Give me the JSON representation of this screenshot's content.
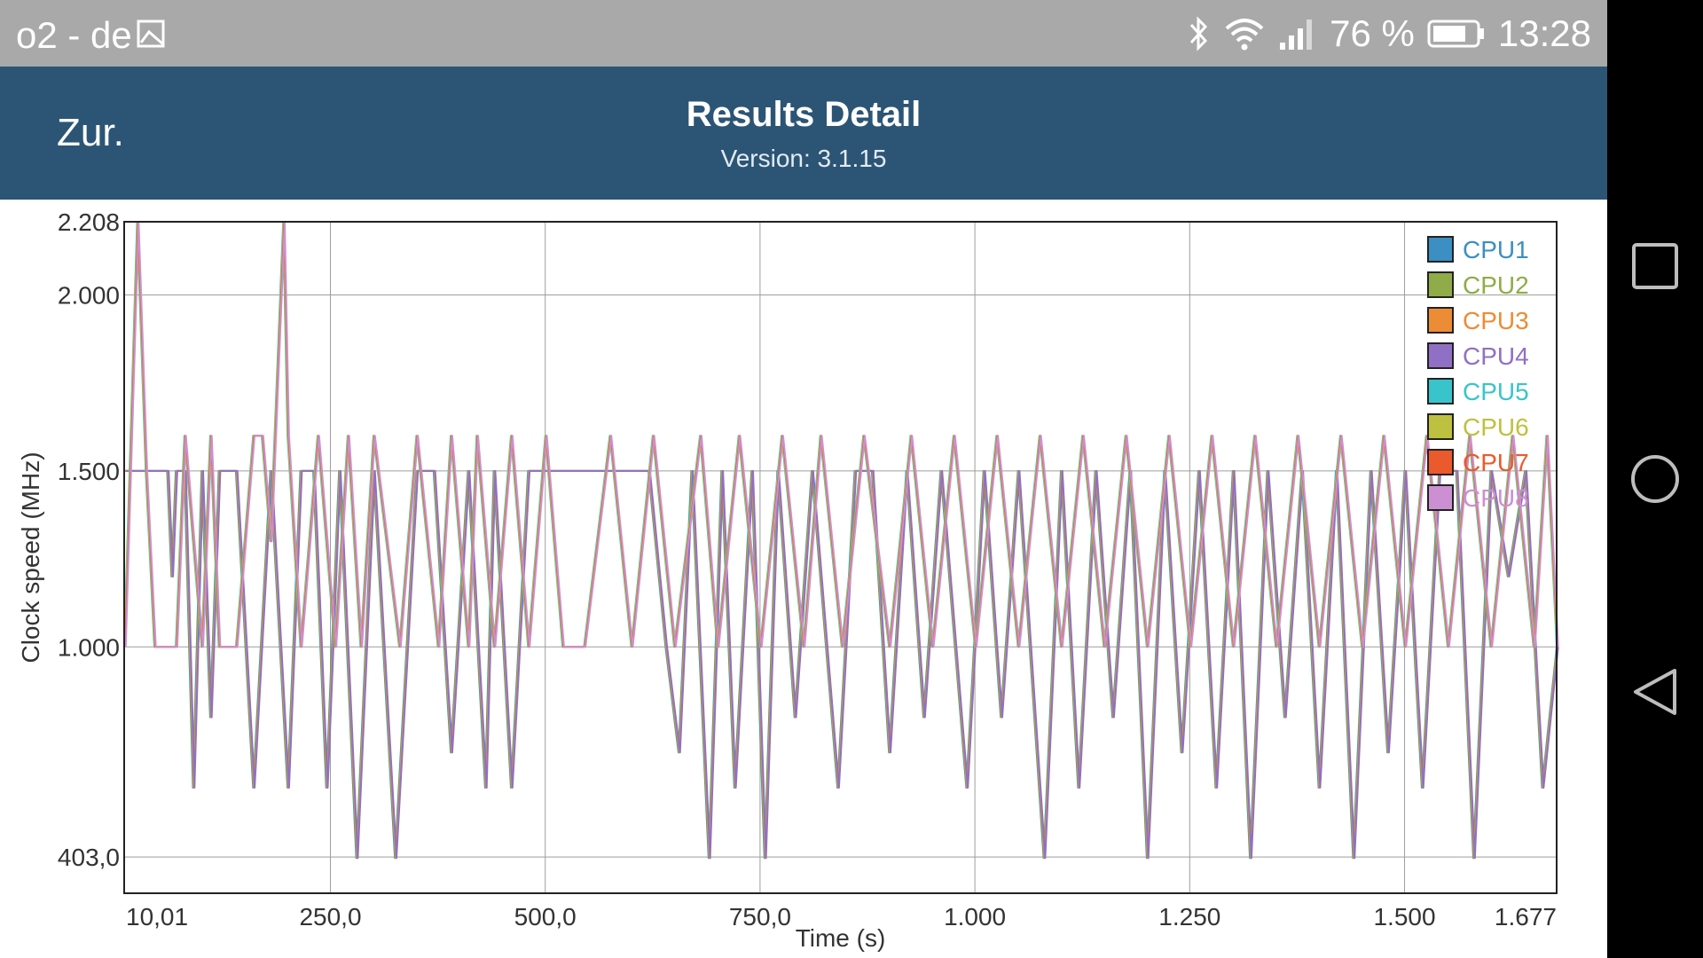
{
  "status_bar": {
    "carrier": "o2 - de",
    "battery": "76 %",
    "time": "13:28",
    "icons": [
      "image-icon",
      "bluetooth-icon",
      "wifi-icon",
      "signal-icon",
      "battery-icon"
    ]
  },
  "app_bar": {
    "back_label": "Zur.",
    "title": "Results Detail",
    "version": "Version: 3.1.15",
    "background": "#2c5575"
  },
  "nav_bar": {
    "buttons": [
      "recent-apps-icon",
      "home-icon",
      "back-icon"
    ]
  },
  "chart_data": {
    "type": "line",
    "xlabel": "Time (s)",
    "ylabel": "Clock speed (MHz)",
    "xlim": [
      10.01,
      1677
    ],
    "ylim": [
      300,
      2208
    ],
    "x_ticks": [
      {
        "value": 10.01,
        "label": "10,01"
      },
      {
        "value": 250,
        "label": "250,0"
      },
      {
        "value": 500,
        "label": "500,0"
      },
      {
        "value": 750,
        "label": "750,0"
      },
      {
        "value": 1000,
        "label": "1.000"
      },
      {
        "value": 1250,
        "label": "1.250"
      },
      {
        "value": 1500,
        "label": "1.500"
      },
      {
        "value": 1677,
        "label": "1.677"
      }
    ],
    "y_ticks": [
      {
        "value": 403,
        "label": "403,0"
      },
      {
        "value": 1000,
        "label": "1.000"
      },
      {
        "value": 1500,
        "label": "1.500"
      },
      {
        "value": 2000,
        "label": "2.000"
      },
      {
        "value": 2208,
        "label": "2.208"
      }
    ],
    "grid": true,
    "legend_position": "top-right",
    "series": [
      {
        "name": "CPU1",
        "color": "#3b8fc2",
        "values_ref": "cluster_a"
      },
      {
        "name": "CPU2",
        "color": "#8fac48",
        "values_ref": "cluster_a"
      },
      {
        "name": "CPU3",
        "color": "#ec8c35",
        "values_ref": "cluster_a"
      },
      {
        "name": "CPU4",
        "color": "#9070c4",
        "values_ref": "cluster_a"
      },
      {
        "name": "CPU5",
        "color": "#39c4cc",
        "values_ref": "cluster_b"
      },
      {
        "name": "CPU6",
        "color": "#bec13f",
        "values_ref": "cluster_b"
      },
      {
        "name": "CPU7",
        "color": "#ea5a2c",
        "values_ref": "cluster_b"
      },
      {
        "name": "CPU8",
        "color": "#cc8fd2",
        "values_ref": "cluster_b"
      }
    ],
    "cluster_a": {
      "x": [
        10.01,
        50,
        60,
        65,
        70,
        80,
        90,
        100,
        110,
        120,
        140,
        160,
        180,
        200,
        215,
        230,
        245,
        260,
        280,
        300,
        325,
        350,
        370,
        390,
        410,
        430,
        440,
        460,
        480,
        500,
        540,
        580,
        600,
        620,
        640,
        655,
        670,
        690,
        705,
        720,
        740,
        755,
        770,
        790,
        810,
        840,
        860,
        880,
        900,
        920,
        940,
        960,
        990,
        1010,
        1030,
        1050,
        1080,
        1100,
        1120,
        1140,
        1160,
        1180,
        1200,
        1220,
        1240,
        1260,
        1280,
        1300,
        1320,
        1340,
        1360,
        1380,
        1400,
        1420,
        1440,
        1460,
        1480,
        1500,
        1520,
        1540,
        1560,
        1580,
        1600,
        1620,
        1640,
        1660,
        1677
      ],
      "y": [
        1500,
        1500,
        1500,
        1200,
        1500,
        1500,
        600,
        1500,
        800,
        1500,
        1500,
        600,
        1500,
        600,
        1500,
        1500,
        600,
        1500,
        400,
        1500,
        400,
        1500,
        1500,
        700,
        1500,
        600,
        1500,
        600,
        1500,
        1500,
        1500,
        1500,
        1500,
        1500,
        1000,
        700,
        1500,
        400,
        1500,
        600,
        1500,
        400,
        1500,
        800,
        1500,
        600,
        1500,
        1500,
        700,
        1500,
        800,
        1500,
        600,
        1500,
        800,
        1500,
        400,
        1500,
        600,
        1500,
        800,
        1500,
        400,
        1500,
        700,
        1500,
        600,
        1500,
        400,
        1500,
        800,
        1500,
        600,
        1500,
        400,
        1500,
        700,
        1500,
        600,
        1500,
        1500,
        400,
        1500,
        1200,
        1500,
        600,
        1000
      ]
    },
    "cluster_b": {
      "x": [
        10.01,
        25,
        35,
        45,
        70,
        80,
        100,
        110,
        120,
        140,
        160,
        170,
        180,
        195,
        200,
        215,
        235,
        255,
        270,
        285,
        300,
        330,
        350,
        375,
        390,
        410,
        420,
        440,
        460,
        480,
        500,
        520,
        545,
        575,
        600,
        625,
        650,
        680,
        700,
        725,
        750,
        775,
        800,
        820,
        845,
        870,
        900,
        925,
        950,
        975,
        1000,
        1025,
        1050,
        1075,
        1100,
        1125,
        1150,
        1175,
        1200,
        1225,
        1250,
        1275,
        1300,
        1325,
        1350,
        1375,
        1400,
        1425,
        1450,
        1475,
        1500,
        1525,
        1550,
        1575,
        1600,
        1625,
        1650,
        1665,
        1677
      ],
      "y": [
        1000,
        2208,
        1500,
        1000,
        1000,
        1600,
        1000,
        1600,
        1000,
        1000,
        1600,
        1600,
        1300,
        2208,
        1600,
        1000,
        1600,
        1000,
        1600,
        1000,
        1600,
        1000,
        1600,
        1000,
        1600,
        1000,
        1600,
        1000,
        1600,
        1000,
        1600,
        1000,
        1000,
        1600,
        1000,
        1600,
        1000,
        1600,
        1000,
        1600,
        1000,
        1600,
        1000,
        1600,
        1000,
        1600,
        1000,
        1600,
        1000,
        1600,
        1000,
        1600,
        1000,
        1600,
        1000,
        1600,
        1000,
        1600,
        1000,
        1600,
        1000,
        1600,
        1000,
        1600,
        1000,
        1600,
        1000,
        1600,
        1000,
        1600,
        1000,
        1600,
        1000,
        1600,
        1000,
        1600,
        1000,
        1600,
        1000
      ]
    }
  }
}
